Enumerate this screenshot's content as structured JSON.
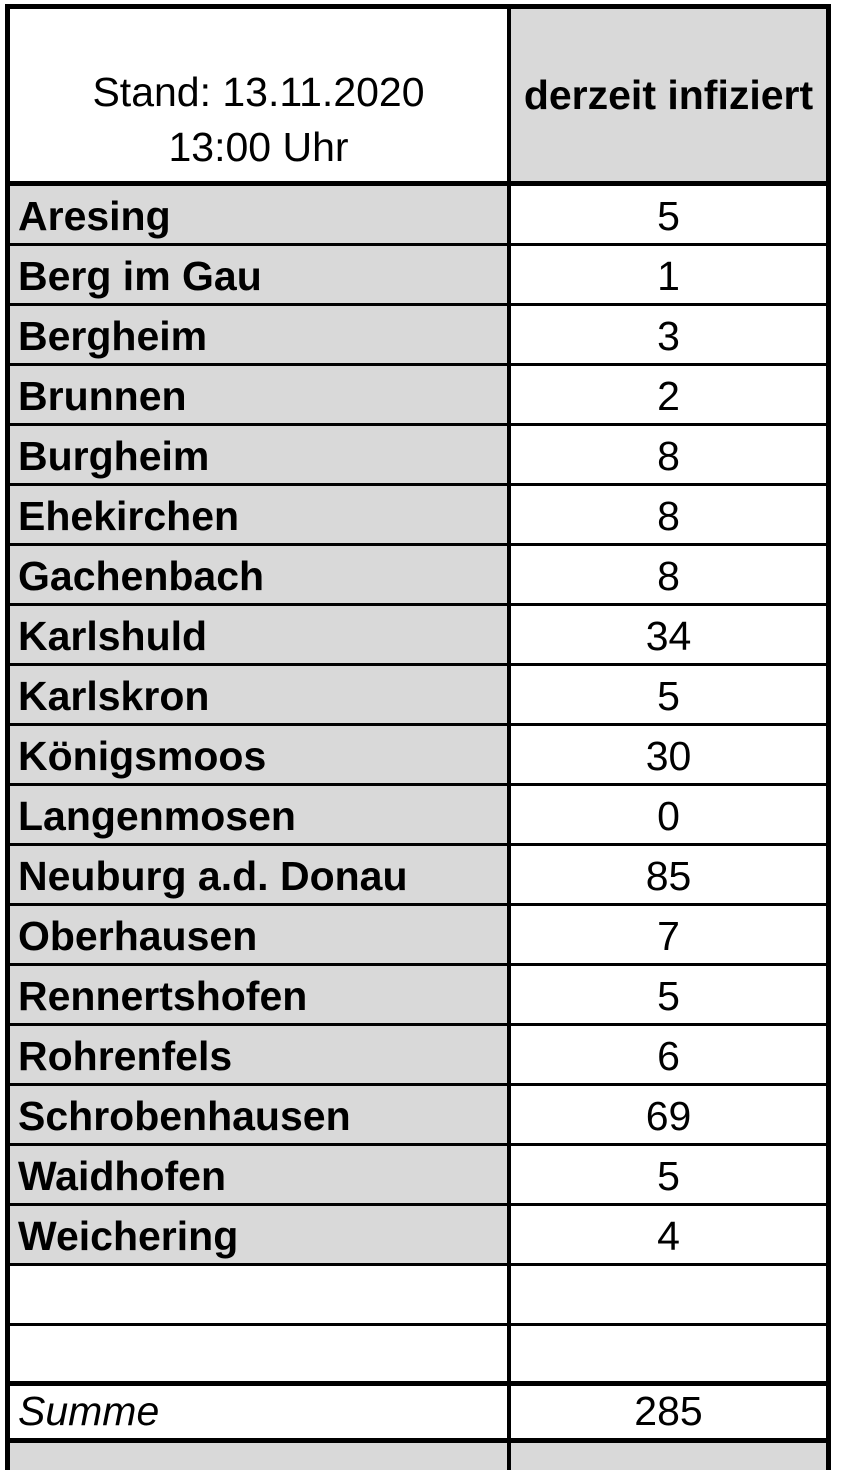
{
  "table": {
    "header": {
      "left_line1": "Stand: 13.11.2020",
      "left_line2": "13:00 Uhr",
      "right": "derzeit infiziert"
    },
    "rows": [
      {
        "name": "Aresing",
        "value": "5"
      },
      {
        "name": "Berg im Gau",
        "value": "1"
      },
      {
        "name": "Bergheim",
        "value": "3"
      },
      {
        "name": "Brunnen",
        "value": "2"
      },
      {
        "name": "Burgheim",
        "value": "8"
      },
      {
        "name": "Ehekirchen",
        "value": "8"
      },
      {
        "name": "Gachenbach",
        "value": "8"
      },
      {
        "name": "Karlshuld",
        "value": "34"
      },
      {
        "name": "Karlskron",
        "value": "5"
      },
      {
        "name": "Königsmoos",
        "value": "30"
      },
      {
        "name": "Langenmosen",
        "value": "0"
      },
      {
        "name": "Neuburg a.d. Donau",
        "value": "85"
      },
      {
        "name": "Oberhausen",
        "value": "7"
      },
      {
        "name": "Rennertshofen",
        "value": "5"
      },
      {
        "name": "Rohrenfels",
        "value": "6"
      },
      {
        "name": "Schrobenhausen",
        "value": "69"
      },
      {
        "name": "Waidhofen",
        "value": "5"
      },
      {
        "name": "Weichering",
        "value": "4"
      }
    ],
    "empty_row_count": 2,
    "summary": {
      "label": "Summe",
      "value": "285"
    }
  },
  "colors": {
    "cell_gray": "#d9d9d9",
    "cell_white": "#ffffff",
    "border": "#000000",
    "text": "#000000"
  }
}
